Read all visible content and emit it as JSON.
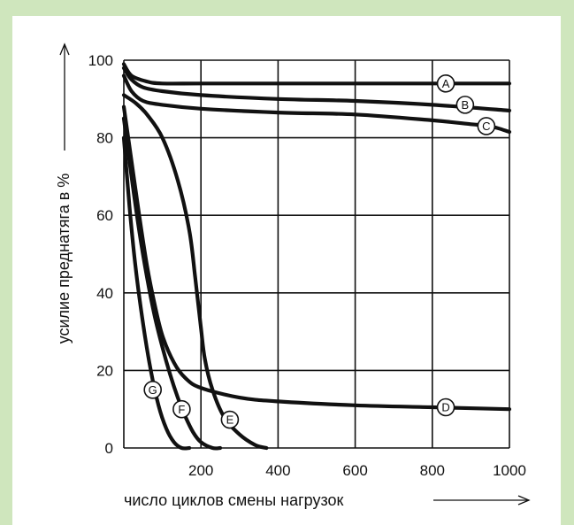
{
  "chart_data": {
    "type": "line",
    "xlabel": "число циклов смены нагрузок",
    "ylabel": "усилие преднатяга в %",
    "xlim": [
      0,
      1000
    ],
    "ylim": [
      0,
      100
    ],
    "xticks": [
      "200",
      "400",
      "600",
      "800",
      "1000"
    ],
    "yticks": [
      "0",
      "20",
      "40",
      "60",
      "80",
      "100"
    ],
    "grid": true,
    "colors": {
      "line": "#111111",
      "grid": "#111111",
      "background": "#ffffff",
      "frame": "#cfe6bd"
    },
    "series": [
      {
        "label": "A",
        "x": [
          0,
          20,
          60,
          100,
          200,
          400,
          600,
          800,
          1000
        ],
        "y": [
          99,
          96,
          94.5,
          94,
          94,
          94,
          94,
          94,
          94
        ]
      },
      {
        "label": "B",
        "x": [
          0,
          20,
          50,
          100,
          200,
          400,
          600,
          800,
          1000
        ],
        "y": [
          98,
          95,
          93,
          92,
          91,
          90,
          89.5,
          88.5,
          87
        ]
      },
      {
        "label": "C",
        "x": [
          0,
          20,
          50,
          100,
          200,
          400,
          600,
          800,
          900,
          950,
          1000
        ],
        "y": [
          96,
          92,
          89.5,
          88.5,
          87.5,
          86.5,
          86,
          84.5,
          83.5,
          83,
          81.5
        ]
      },
      {
        "label": "D",
        "x": [
          0,
          20,
          40,
          60,
          80,
          100,
          130,
          160,
          200,
          300,
          400,
          600,
          800,
          1000
        ],
        "y": [
          88,
          74,
          60,
          47,
          37,
          29,
          22,
          18,
          15.5,
          13,
          12,
          11,
          10.5,
          10
        ]
      },
      {
        "label": "E",
        "x": [
          0,
          30,
          60,
          100,
          140,
          170,
          185,
          200,
          210,
          230,
          260,
          300,
          340,
          370
        ],
        "y": [
          91,
          89,
          86,
          80,
          69,
          56,
          44,
          31,
          23,
          15,
          8,
          3.5,
          0.8,
          0
        ]
      },
      {
        "label": "F",
        "x": [
          0,
          20,
          40,
          60,
          80,
          100,
          120,
          140,
          160,
          180,
          200,
          230,
          250
        ],
        "y": [
          85,
          70,
          56,
          44,
          34,
          26,
          19,
          13,
          8,
          4,
          1.5,
          0,
          0
        ]
      },
      {
        "label": "G",
        "x": [
          0,
          15,
          30,
          50,
          70,
          90,
          110,
          130,
          150,
          170
        ],
        "y": [
          80,
          62,
          47,
          32,
          20,
          11,
          5,
          1.5,
          0,
          0
        ]
      }
    ],
    "label_points": [
      {
        "label": "A",
        "x": 835,
        "y": 94
      },
      {
        "label": "B",
        "x": 885,
        "y": 88.5
      },
      {
        "label": "C",
        "x": 940,
        "y": 83
      },
      {
        "label": "D",
        "x": 835,
        "y": 10.5
      },
      {
        "label": "E",
        "x": 275,
        "y": 7.3
      },
      {
        "label": "F",
        "x": 150,
        "y": 10
      },
      {
        "label": "G",
        "x": 75,
        "y": 15
      }
    ]
  }
}
